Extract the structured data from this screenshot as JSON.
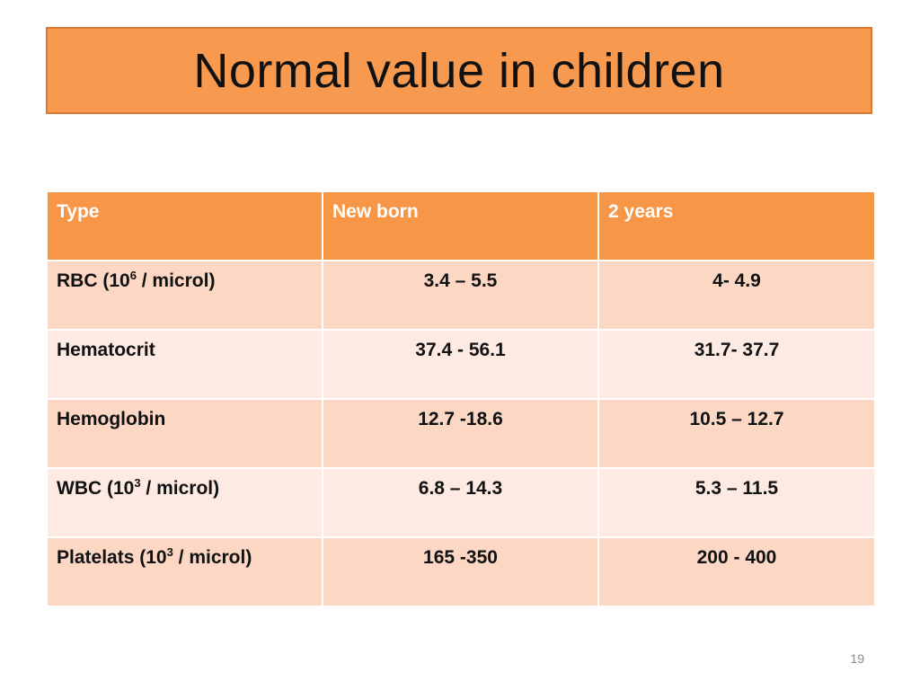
{
  "slide": {
    "title": "Normal value in children",
    "page_number": "19"
  },
  "table": {
    "headers": [
      "Type",
      "New born",
      "2 years"
    ],
    "rows": [
      {
        "label_pre": "RBC (10",
        "label_sup": "6",
        "label_post": " / microl)",
        "new_born": "3.4 – 5.5",
        "two_years": "4- 4.9"
      },
      {
        "label_pre": "Hematocrit",
        "label_sup": "",
        "label_post": "",
        "new_born": "37.4 - 56.1",
        "two_years": "31.7- 37.7"
      },
      {
        "label_pre": "Hemoglobin",
        "label_sup": "",
        "label_post": "",
        "new_born": "12.7 -18.6",
        "two_years": "10.5 – 12.7"
      },
      {
        "label_pre": "WBC (10",
        "label_sup": "3",
        "label_post": " / microl)",
        "new_born": "6.8 – 14.3",
        "two_years": "5.3 – 11.5"
      },
      {
        "label_pre": "Platelats (10",
        "label_sup": "3",
        "label_post": " / microl)",
        "new_born": "165 -350",
        "two_years": "200 - 400"
      }
    ]
  },
  "colors": {
    "title_bg": "#f79a4f",
    "header_bg": "#f79646",
    "row_odd": "#fbd7c4",
    "row_even": "#fdeae2"
  }
}
